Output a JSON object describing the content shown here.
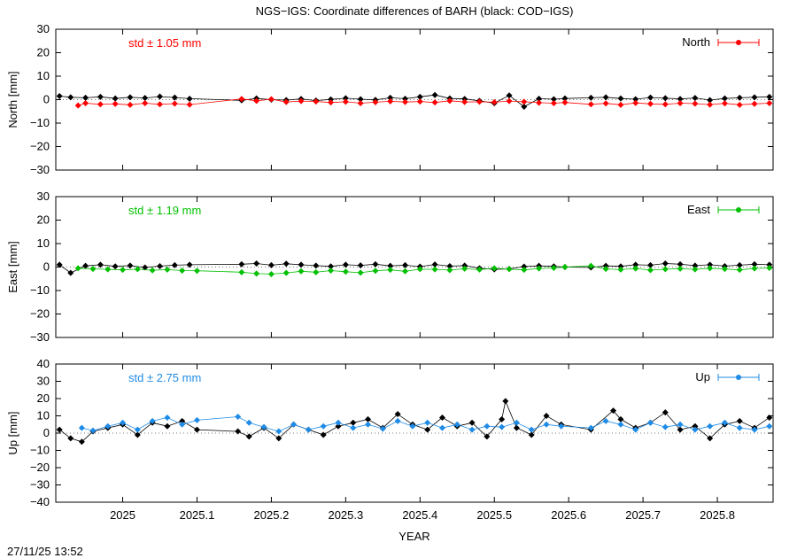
{
  "title": "NGS−IGS: Coordinate differences of BARH (black: COD−IGS)",
  "timestamp": "27/11/25 13:52",
  "chart_data": {
    "type": "scatter",
    "xlabel": "YEAR",
    "xlim": [
      2024.91,
      2025.875
    ],
    "xticks": [
      2025,
      2025.1,
      2025.2,
      2025.3,
      2025.4,
      2025.5,
      2025.6,
      2025.7,
      2025.8
    ],
    "xtick_labels": [
      "2025",
      "2025.1",
      "2025.2",
      "2025.3",
      "2025.4",
      "2025.5",
      "2025.6",
      "2025.7",
      "2025.8"
    ],
    "data_gap": [
      2025.095,
      2025.155
    ],
    "panels": [
      {
        "name": "north",
        "ylabel": "North [mm]",
        "ylim": [
          -30,
          30
        ],
        "yticks": [
          30,
          20,
          10,
          0,
          -10,
          -20,
          -30
        ],
        "ytick_labels": [
          "30",
          "20",
          "10",
          "0",
          "−10",
          "−20",
          "−30"
        ],
        "std_label": "std ± 1.05 mm",
        "legend": "North",
        "color": "#ff0000",
        "series": [
          {
            "name": "NGS-IGS",
            "x": [
              2024.94,
              2024.95,
              2024.97,
              2024.99,
              2025.01,
              2025.03,
              2025.05,
              2025.07,
              2025.09,
              2025.16,
              2025.18,
              2025.2,
              2025.22,
              2025.24,
              2025.26,
              2025.28,
              2025.3,
              2025.32,
              2025.34,
              2025.36,
              2025.38,
              2025.4,
              2025.42,
              2025.44,
              2025.46,
              2025.48,
              2025.5,
              2025.52,
              2025.54,
              2025.56,
              2025.58,
              2025.595,
              2025.63,
              2025.65,
              2025.67,
              2025.69,
              2025.71,
              2025.73,
              2025.75,
              2025.77,
              2025.79,
              2025.81,
              2025.83,
              2025.85,
              2025.87
            ],
            "y": [
              -2.5,
              -1.5,
              -2,
              -1.8,
              -2.2,
              -1.5,
              -2,
              -1.7,
              -2.1,
              0.3,
              -0.5,
              0.2,
              -1,
              -0.6,
              -0.8,
              -1.2,
              -0.9,
              -1.5,
              -1.1,
              -0.7,
              -1,
              -0.8,
              -1.2,
              -0.5,
              -1,
              -0.9,
              -1.1,
              -0.6,
              -0.9,
              -1.3,
              -1.5,
              -1.2,
              -2,
              -1.6,
              -2.2,
              -1.4,
              -1.8,
              -2,
              -1.5,
              -1.7,
              -2.1,
              -1.6,
              -2.2,
              -1.8,
              -1.5
            ]
          },
          {
            "name": "COD-IGS",
            "x": [
              2024.915,
              2024.93,
              2024.95,
              2024.97,
              2024.99,
              2025.01,
              2025.03,
              2025.05,
              2025.07,
              2025.09,
              2025.16,
              2025.18,
              2025.2,
              2025.22,
              2025.24,
              2025.26,
              2025.28,
              2025.3,
              2025.32,
              2025.34,
              2025.36,
              2025.38,
              2025.4,
              2025.42,
              2025.44,
              2025.46,
              2025.48,
              2025.5,
              2025.52,
              2025.54,
              2025.56,
              2025.58,
              2025.595,
              2025.63,
              2025.65,
              2025.67,
              2025.69,
              2025.71,
              2025.73,
              2025.75,
              2025.77,
              2025.79,
              2025.81,
              2025.83,
              2025.85,
              2025.87
            ],
            "y": [
              1.5,
              1,
              0.8,
              1.2,
              0.5,
              1,
              0.7,
              1.3,
              0.9,
              0.4,
              -0.3,
              0.5,
              0,
              -0.2,
              0.3,
              -0.4,
              0.1,
              0.6,
              0.2,
              -0.1,
              0.8,
              0.4,
              1.2,
              2,
              0.5,
              0.3,
              -0.5,
              -1.5,
              1.8,
              -3,
              0.4,
              0.2,
              0.5,
              0.8,
              1,
              0.5,
              0.2,
              0.9,
              0.6,
              0.3,
              0.7,
              -0.2,
              0.5,
              0.8,
              1,
              1.2
            ]
          }
        ]
      },
      {
        "name": "east",
        "ylabel": "East [mm]",
        "ylim": [
          -30,
          30
        ],
        "yticks": [
          30,
          20,
          10,
          0,
          -10,
          -20,
          -30
        ],
        "ytick_labels": [
          "30",
          "20",
          "10",
          "0",
          "−10",
          "−20",
          "−30"
        ],
        "std_label": "std ± 1.19 mm",
        "legend": "East",
        "color": "#00c000",
        "series": [
          {
            "name": "NGS-IGS",
            "x": [
              2024.94,
              2024.96,
              2024.98,
              2025,
              2025.02,
              2025.04,
              2025.06,
              2025.08,
              2025.1,
              2025.16,
              2025.18,
              2025.2,
              2025.22,
              2025.24,
              2025.26,
              2025.28,
              2025.3,
              2025.32,
              2025.34,
              2025.36,
              2025.38,
              2025.4,
              2025.42,
              2025.44,
              2025.46,
              2025.48,
              2025.5,
              2025.52,
              2025.54,
              2025.56,
              2025.58,
              2025.595,
              2025.63,
              2025.65,
              2025.67,
              2025.69,
              2025.71,
              2025.73,
              2025.75,
              2025.77,
              2025.79,
              2025.81,
              2025.83,
              2025.85,
              2025.87
            ],
            "y": [
              -0.5,
              -0.8,
              -1,
              -1.2,
              -0.9,
              -1.4,
              -1.1,
              -1.5,
              -1.6,
              -2.2,
              -2.8,
              -3,
              -2.5,
              -1.8,
              -2.2,
              -1.5,
              -2,
              -2.4,
              -1.6,
              -1.2,
              -1.8,
              -0.9,
              -1,
              -1.3,
              -0.7,
              -1.1,
              -0.5,
              -0.9,
              -1.2,
              -0.6,
              -0.4,
              0,
              0.5,
              -0.8,
              -1.1,
              -0.6,
              -1.3,
              -0.9,
              -0.7,
              -1,
              -0.5,
              -0.8,
              -1.2,
              -0.6,
              -0.4
            ]
          },
          {
            "name": "COD-IGS",
            "x": [
              2024.915,
              2024.93,
              2024.95,
              2024.97,
              2024.99,
              2025.01,
              2025.03,
              2025.05,
              2025.07,
              2025.09,
              2025.16,
              2025.18,
              2025.2,
              2025.22,
              2025.24,
              2025.26,
              2025.28,
              2025.3,
              2025.32,
              2025.34,
              2025.36,
              2025.38,
              2025.4,
              2025.42,
              2025.44,
              2025.46,
              2025.48,
              2025.5,
              2025.52,
              2025.54,
              2025.56,
              2025.58,
              2025.595,
              2025.63,
              2025.65,
              2025.67,
              2025.69,
              2025.71,
              2025.73,
              2025.75,
              2025.77,
              2025.79,
              2025.81,
              2025.83,
              2025.85,
              2025.87
            ],
            "y": [
              1,
              -2.5,
              0.5,
              1,
              0.3,
              0.6,
              -0.2,
              0.4,
              0.8,
              1,
              1.2,
              1.5,
              0.8,
              1.4,
              1,
              0.6,
              0.3,
              1,
              0.7,
              1.2,
              0.5,
              0.8,
              0.2,
              1.1,
              0.4,
              0.6,
              -0.5,
              -1,
              -0.8,
              0.2,
              0.5,
              0.3,
              0,
              -0.2,
              0.5,
              0.3,
              1,
              0.8,
              1.5,
              1.2,
              0.6,
              1,
              0.4,
              0.8,
              1.2,
              1
            ]
          }
        ]
      },
      {
        "name": "up",
        "ylabel": "Up [mm]",
        "ylim": [
          -40,
          40
        ],
        "yticks": [
          40,
          30,
          20,
          10,
          0,
          -10,
          -20,
          -30,
          -40
        ],
        "ytick_labels": [
          "40",
          "30",
          "20",
          "10",
          "0",
          "−10",
          "−20",
          "−30",
          "−40"
        ],
        "std_label": "std ± 2.75 mm",
        "legend": "Up",
        "color": "#1e8be6",
        "series": [
          {
            "name": "NGS-IGS",
            "x": [
              2024.945,
              2024.96,
              2024.98,
              2025,
              2025.02,
              2025.04,
              2025.06,
              2025.08,
              2025.1,
              2025.155,
              2025.17,
              2025.19,
              2025.21,
              2025.23,
              2025.25,
              2025.27,
              2025.29,
              2025.31,
              2025.33,
              2025.35,
              2025.37,
              2025.39,
              2025.41,
              2025.43,
              2025.45,
              2025.47,
              2025.49,
              2025.51,
              2025.53,
              2025.55,
              2025.57,
              2025.59,
              2025.63,
              2025.65,
              2025.67,
              2025.69,
              2025.71,
              2025.73,
              2025.75,
              2025.77,
              2025.79,
              2025.81,
              2025.83,
              2025.85,
              2025.87
            ],
            "y": [
              3,
              1.5,
              4,
              6,
              2,
              7,
              9,
              5,
              7.5,
              9.5,
              6,
              3.5,
              1,
              5,
              2,
              4,
              6,
              3,
              5,
              2.5,
              7,
              4,
              6,
              3,
              5,
              2,
              4,
              3.5,
              6,
              2,
              5,
              4,
              3,
              7,
              5,
              2,
              6,
              3.5,
              5,
              2,
              4,
              6,
              3,
              2,
              4
            ]
          },
          {
            "name": "COD-IGS",
            "x": [
              2024.915,
              2024.93,
              2024.945,
              2024.96,
              2024.98,
              2025,
              2025.02,
              2025.04,
              2025.06,
              2025.08,
              2025.1,
              2025.155,
              2025.17,
              2025.19,
              2025.21,
              2025.23,
              2025.25,
              2025.27,
              2025.29,
              2025.31,
              2025.33,
              2025.35,
              2025.37,
              2025.39,
              2025.41,
              2025.43,
              2025.45,
              2025.47,
              2025.49,
              2025.51,
              2025.515,
              2025.53,
              2025.55,
              2025.57,
              2025.59,
              2025.63,
              2025.66,
              2025.67,
              2025.69,
              2025.71,
              2025.73,
              2025.75,
              2025.77,
              2025.79,
              2025.81,
              2025.83,
              2025.85,
              2025.87
            ],
            "y": [
              2,
              -3,
              -5,
              1,
              3,
              5,
              -1,
              6,
              4,
              7,
              2,
              1,
              -2,
              3,
              -3,
              5,
              2,
              -1,
              4,
              6,
              8,
              3,
              11,
              5,
              2,
              9,
              4,
              6,
              -2,
              8,
              18.5,
              3,
              -1,
              10,
              5,
              2,
              13,
              8,
              3,
              6,
              12,
              2,
              4,
              -3,
              5,
              7,
              3,
              9
            ]
          }
        ]
      }
    ]
  }
}
